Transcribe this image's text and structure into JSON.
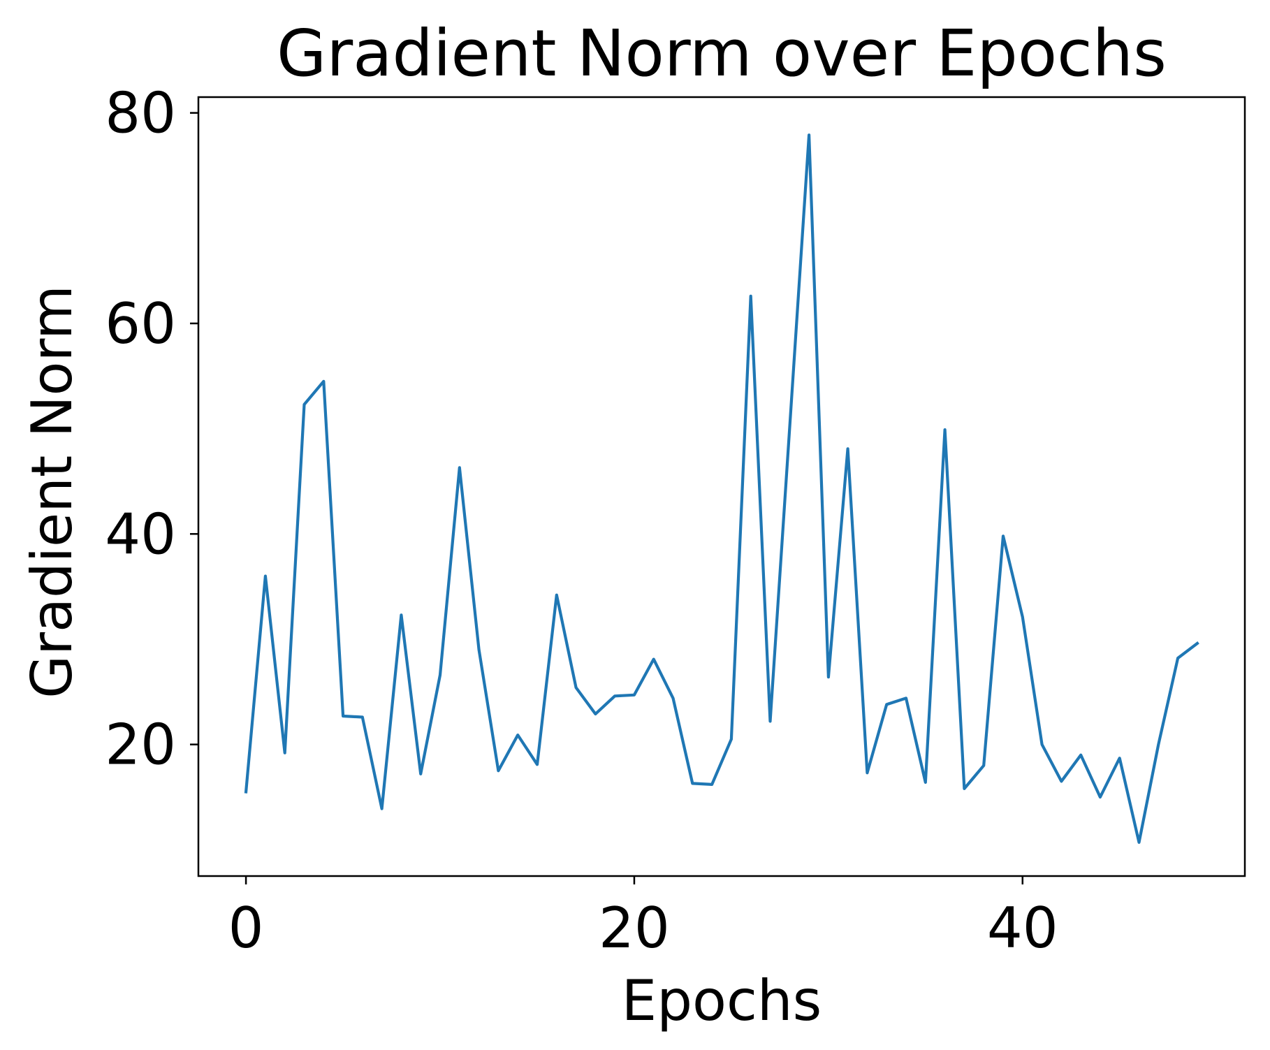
{
  "chart_data": {
    "type": "line",
    "title": "Gradient Norm over Epochs",
    "xlabel": "Epochs",
    "ylabel": "Gradient Norm",
    "xlim": [
      -2.45,
      51.45
    ],
    "ylim": [
      7.5,
      81.5
    ],
    "xticks": [
      0,
      20,
      40
    ],
    "yticks": [
      20,
      40,
      60,
      80
    ],
    "grid": false,
    "legend": "none",
    "series": [
      {
        "color": "#1f77b4",
        "x": [
          0,
          1,
          2,
          3,
          4,
          5,
          6,
          7,
          8,
          9,
          10,
          11,
          12,
          13,
          14,
          15,
          16,
          17,
          18,
          19,
          20,
          21,
          22,
          23,
          24,
          25,
          26,
          27,
          28,
          29,
          30,
          31,
          32,
          33,
          34,
          35,
          36,
          37,
          38,
          39,
          40,
          41,
          42,
          43,
          44,
          45,
          46,
          47,
          48,
          49
        ],
        "y": [
          15.5,
          36.0,
          19.2,
          52.3,
          54.5,
          22.7,
          22.6,
          13.9,
          32.3,
          17.2,
          26.6,
          46.3,
          29.0,
          17.5,
          20.9,
          18.1,
          34.2,
          25.4,
          22.9,
          24.6,
          24.7,
          28.1,
          24.4,
          16.3,
          16.2,
          20.5,
          62.6,
          22.2,
          50.0,
          77.9,
          26.4,
          48.1,
          17.3,
          23.8,
          24.4,
          16.4,
          49.9,
          15.8,
          18.0,
          39.8,
          32.1,
          20.0,
          16.5,
          19.0,
          15.0,
          18.7,
          10.7,
          20.0,
          28.2,
          29.6
        ]
      }
    ]
  }
}
